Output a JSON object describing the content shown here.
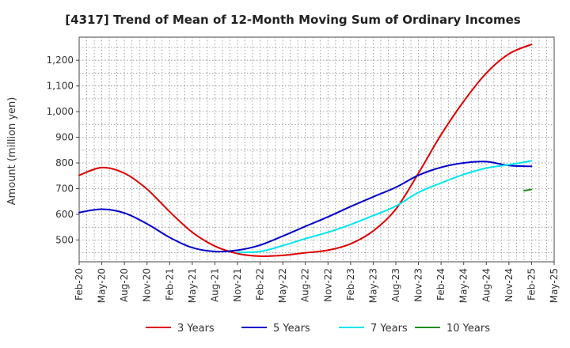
{
  "chart_data": {
    "type": "line",
    "title": "[4317]  Trend of Mean of 12-Month Moving Sum of Ordinary Incomes",
    "xlabel": "",
    "ylabel": "Amount (million yen)",
    "ylim": [
      415,
      1290
    ],
    "yticks": [
      500,
      600,
      700,
      800,
      900,
      1000,
      1100,
      1200
    ],
    "ytick_labels": [
      "500",
      "600",
      "700",
      "800",
      "900",
      "1,000",
      "1,100",
      "1,200"
    ],
    "x_tick_labels": [
      "Feb-20",
      "May-20",
      "Aug-20",
      "Nov-20",
      "Feb-21",
      "May-21",
      "Aug-21",
      "Nov-21",
      "Feb-22",
      "May-22",
      "Aug-22",
      "Nov-22",
      "Feb-23",
      "May-23",
      "Aug-23",
      "Nov-23",
      "Feb-24",
      "May-24",
      "Aug-24",
      "Nov-24",
      "Feb-25",
      "May-25"
    ],
    "x_unit": "months since Feb-20",
    "xlim": [
      0,
      63
    ],
    "grid": true,
    "legend_position": "bottom",
    "series": [
      {
        "name": "3 Years",
        "color": "#dd0000",
        "x": [
          0,
          3,
          6,
          9,
          12,
          15,
          18,
          21,
          24,
          27,
          30,
          33,
          36,
          39,
          42,
          45,
          48,
          51,
          54,
          57,
          60
        ],
        "y": [
          752,
          782,
          760,
          698,
          610,
          530,
          476,
          447,
          437,
          440,
          450,
          460,
          485,
          535,
          620,
          760,
          910,
          1040,
          1150,
          1225,
          1262
        ]
      },
      {
        "name": "5 Years",
        "color": "#0000cc",
        "x": [
          0,
          3,
          6,
          9,
          12,
          15,
          18,
          21,
          24,
          27,
          30,
          33,
          36,
          39,
          42,
          45,
          48,
          51,
          54,
          57,
          60
        ],
        "y": [
          607,
          620,
          605,
          563,
          510,
          470,
          455,
          460,
          480,
          515,
          553,
          590,
          630,
          668,
          705,
          752,
          783,
          800,
          805,
          790,
          787
        ]
      },
      {
        "name": "7 Years",
        "color": "#00e5ee",
        "x": [
          21,
          24,
          27,
          30,
          33,
          36,
          39,
          42,
          45,
          48,
          51,
          54,
          57,
          60
        ],
        "y": [
          452,
          455,
          478,
          505,
          530,
          560,
          595,
          632,
          685,
          722,
          755,
          780,
          793,
          808
        ]
      },
      {
        "name": "10 Years",
        "color": "#228b22",
        "x": [
          59,
          60
        ],
        "y": [
          692,
          697
        ]
      }
    ]
  }
}
